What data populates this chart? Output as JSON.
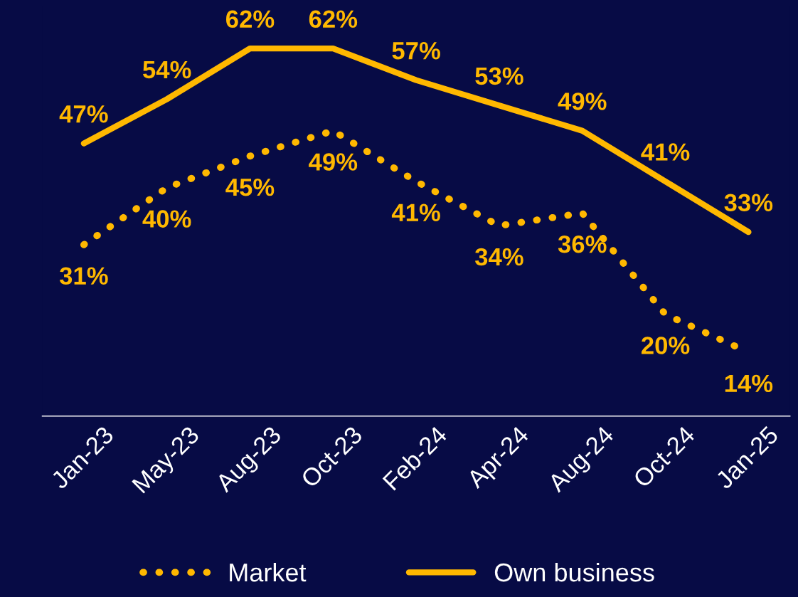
{
  "chart_data": {
    "type": "line",
    "categories": [
      "Jan-23",
      "May-23",
      "Aug-23",
      "Oct-23",
      "Feb-24",
      "Apr-24",
      "Aug-24",
      "Oct-24",
      "Jan-25"
    ],
    "series": [
      {
        "name": "Market",
        "color": "#ffb800",
        "line_style": "dotted",
        "values": [
          31,
          40,
          45,
          49,
          41,
          34,
          36,
          20,
          14
        ],
        "value_labels": [
          "31%",
          "40%",
          "45%",
          "49%",
          "41%",
          "34%",
          "36%",
          "20%",
          "14%"
        ]
      },
      {
        "name": "Own business",
        "color": "#ffb800",
        "line_style": "solid",
        "values": [
          47,
          54,
          62,
          62,
          57,
          53,
          49,
          41,
          33
        ],
        "value_labels": [
          "47%",
          "54%",
          "62%",
          "62%",
          "57%",
          "53%",
          "49%",
          "41%",
          "33%"
        ]
      }
    ],
    "legend": "bottom",
    "grid": false,
    "tick_labels": "x",
    "marker": "none"
  }
}
